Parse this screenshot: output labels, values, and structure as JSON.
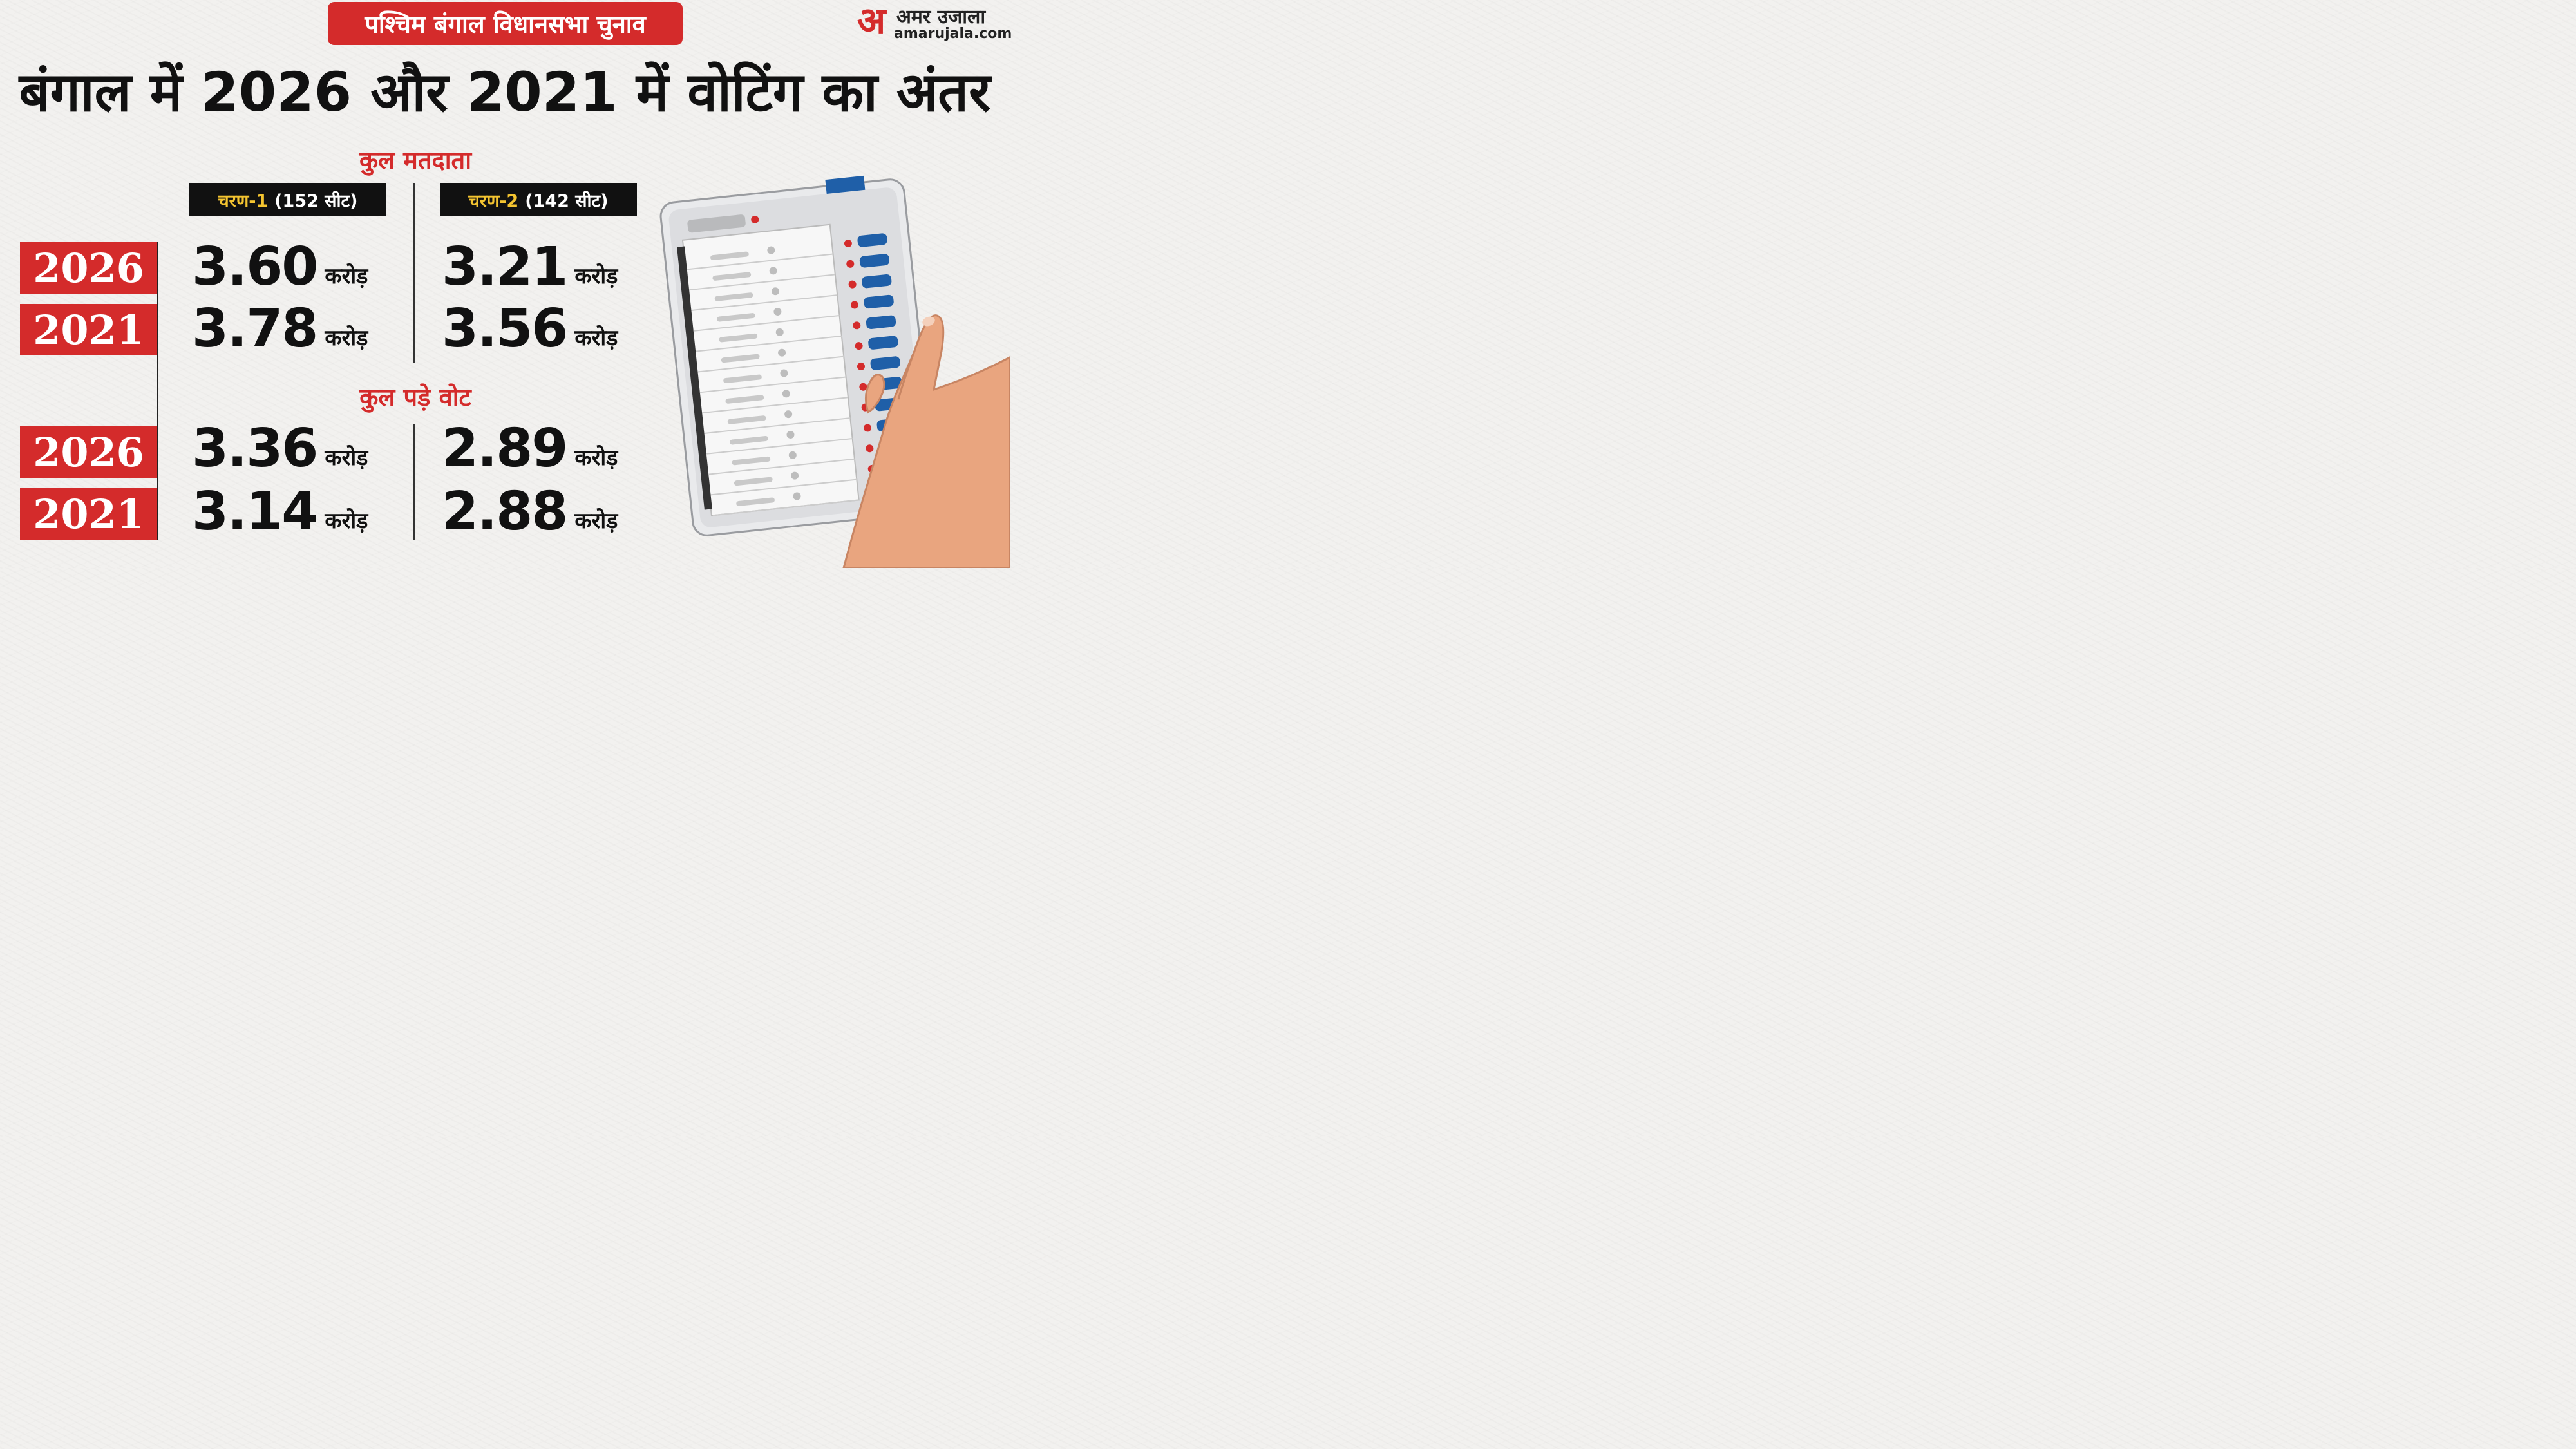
{
  "header": {
    "banner": "पश्चिम बंगाल विधानसभा चुनाव",
    "title": "बंगाल में 2026 और 2021 में वोटिंग का अंतर"
  },
  "brand": {
    "logo_mark": "अ",
    "name": "अमर उजाला",
    "url": "amarujala.com"
  },
  "phases": [
    {
      "name": "चरण-1",
      "seats": "(152 सीट)"
    },
    {
      "name": "चरण-2",
      "seats": "(142 सीट)"
    }
  ],
  "unit": "करोड़",
  "sections": [
    {
      "title": "कुल मतदाता",
      "rows": [
        {
          "year": "2026",
          "phase1": "3.60",
          "phase2": "3.21"
        },
        {
          "year": "2021",
          "phase1": "3.78",
          "phase2": "3.56"
        }
      ]
    },
    {
      "title": "कुल पड़े वोट",
      "rows": [
        {
          "year": "2026",
          "phase1": "3.36",
          "phase2": "2.89"
        },
        {
          "year": "2021",
          "phase1": "3.14",
          "phase2": "2.88"
        }
      ]
    }
  ],
  "colors": {
    "accent_red": "#d42b2b",
    "phase_label_yellow": "#f4c430",
    "evm_button_blue": "#1f5fa8",
    "background": "#f2f1ef"
  },
  "illustration": {
    "icon": "evm-voting-machine-with-finger-icon"
  }
}
